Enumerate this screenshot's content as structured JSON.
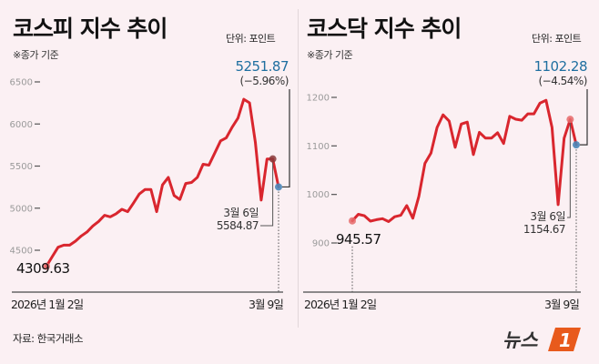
{
  "charts_meta": {
    "left": {
      "title": "코스피 지수 추이",
      "unit": "단위: 포인트",
      "note": "※종가 기준"
    },
    "right": {
      "title": "코스닥 지수 추이",
      "unit": "단위: 포인트",
      "note": "※종가 기준"
    }
  },
  "source": "자료: 한국거래소",
  "logo_text": "뉴스1",
  "colors": {
    "line": "#d9262e",
    "blue": "#1f6fa0",
    "background": "#fbf0f3",
    "start_dot": "#e66a6a"
  },
  "chart_data": [
    {
      "type": "line",
      "title": "코스피 지수 추이",
      "ylabel": "단위: 포인트",
      "yticks": [
        4500,
        5000,
        5500,
        6000,
        6500
      ],
      "ytick_labels": [
        "4500",
        "5000",
        "5500",
        "6000",
        "6500"
      ],
      "ylim": [
        4250,
        6650
      ],
      "x_start_label": "2026년 1월 2일",
      "x_end_label": "3월 9일",
      "values": [
        4309.63,
        4424,
        4536,
        4561,
        4561,
        4608,
        4670,
        4717,
        4789,
        4843,
        4915,
        4897,
        4933,
        4987,
        4958,
        5060,
        5168,
        5222,
        5222,
        4958,
        5276,
        5366,
        5150,
        5103,
        5294,
        5305,
        5366,
        5522,
        5511,
        5655,
        5800,
        5836,
        5962,
        6070,
        6294,
        6251,
        5782,
        5096,
        5583,
        5584.87,
        5251.87
      ],
      "annotations": {
        "start": {
          "value_label": "4309.63"
        },
        "prev": {
          "date": "3월 6일",
          "value_label": "5584.87"
        },
        "last": {
          "value_label": "5251.87",
          "change": "(−5.96%)"
        }
      }
    },
    {
      "type": "line",
      "title": "코스닥 지수 추이",
      "ylabel": "단위: 포인트",
      "yticks": [
        900,
        1000,
        1100,
        1200
      ],
      "ytick_labels": [
        "900",
        "1000",
        "1100",
        "1200"
      ],
      "ylim": [
        880,
        1230
      ],
      "x_start_label": "2026년 1월 2일",
      "x_end_label": "3월 9일",
      "values": [
        945.57,
        959,
        956,
        945,
        948,
        950,
        944,
        954,
        957,
        977,
        951,
        996,
        1064,
        1085,
        1138,
        1164,
        1151,
        1097,
        1145,
        1149,
        1082,
        1128,
        1116,
        1116,
        1127,
        1105,
        1161,
        1155,
        1153,
        1166,
        1166,
        1188,
        1194,
        1138,
        979,
        1116,
        1154.67,
        1102.28
      ],
      "annotations": {
        "start": {
          "value_label": "945.57"
        },
        "prev": {
          "date": "3월 6일",
          "value_label": "1154.67"
        },
        "last": {
          "value_label": "1102.28",
          "change": "(−4.54%)"
        }
      }
    }
  ]
}
